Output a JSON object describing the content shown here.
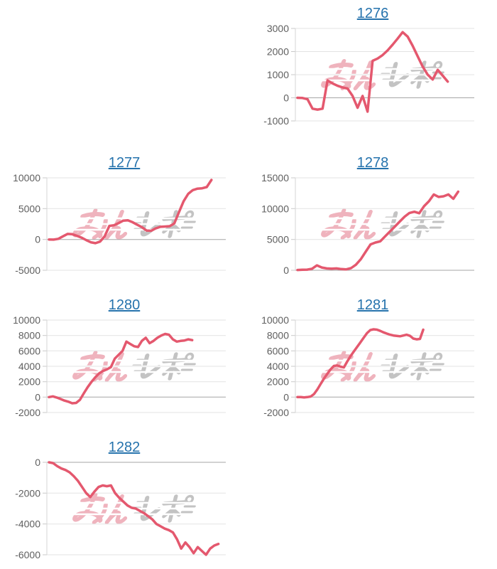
{
  "page": {
    "background": "#ffffff"
  },
  "style": {
    "line_color": "#e4586e",
    "grid_color": "#e3e3e3",
    "zero_line_color": "#a6a6a6",
    "axis_line_color": "#d6d6d6",
    "tick_color": "#c9c9c9",
    "tick_text_color": "#5f5f5f",
    "title_color": "#2673ad",
    "watermark_pink": "#eda6b2",
    "watermark_gray": "#b9b9b9"
  },
  "watermark": {
    "text": "みんレポ"
  },
  "chart_data": [
    {
      "type": "line",
      "title": "1276",
      "ylabel": "",
      "xlabel": "",
      "yticks": [
        3000,
        2000,
        1000,
        0,
        -1000
      ],
      "ylim": [
        -1000,
        3000
      ],
      "grid": true,
      "x_fraction": 0.86,
      "values": [
        0,
        -10,
        -60,
        -470,
        -510,
        -470,
        750,
        620,
        520,
        450,
        400,
        80,
        -430,
        80,
        -600,
        1600,
        1700,
        1850,
        2050,
        2300,
        2560,
        2840,
        2650,
        2250,
        1800,
        1350,
        1000,
        790,
        1210,
        960,
        700
      ]
    },
    {
      "type": "line",
      "title": "1277",
      "ylabel": "",
      "xlabel": "",
      "yticks": [
        10000,
        5000,
        0,
        -5000
      ],
      "ylim": [
        -5000,
        10000
      ],
      "grid": true,
      "x_fraction": 0.93,
      "values": [
        0,
        -30,
        100,
        500,
        900,
        850,
        600,
        300,
        -100,
        -450,
        -600,
        -350,
        500,
        2200,
        2300,
        2650,
        3050,
        3100,
        2800,
        2400,
        2000,
        1450,
        1400,
        1800,
        2050,
        2100,
        2150,
        2600,
        4400,
        6200,
        7400,
        8000,
        8250,
        8300,
        8500,
        9650
      ]
    },
    {
      "type": "line",
      "title": "1278",
      "ylabel": "",
      "xlabel": "",
      "yticks": [
        15000,
        10000,
        5000,
        0
      ],
      "ylim": [
        0,
        15000
      ],
      "grid": true,
      "x_fraction": 0.92,
      "values": [
        50,
        80,
        100,
        250,
        800,
        450,
        300,
        250,
        300,
        200,
        150,
        350,
        900,
        1800,
        3000,
        4200,
        4500,
        4700,
        5500,
        6300,
        7100,
        7900,
        8700,
        9300,
        9500,
        9250,
        10400,
        11200,
        12300,
        11900,
        12000,
        12300,
        11600,
        12750
      ]
    },
    {
      "type": "line",
      "title": "1280",
      "ylabel": "",
      "xlabel": "",
      "yticks": [
        10000,
        8000,
        6000,
        4000,
        2000,
        0,
        -2000
      ],
      "ylim": [
        -2000,
        10000
      ],
      "grid": true,
      "x_fraction": 0.82,
      "values": [
        0,
        100,
        -50,
        -250,
        -450,
        -600,
        -800,
        -750,
        -350,
        500,
        1300,
        2000,
        2600,
        3100,
        3400,
        3600,
        3900,
        5000,
        5500,
        6000,
        7200,
        6900,
        6600,
        6500,
        7300,
        7700,
        7000,
        7300,
        7700,
        8000,
        8200,
        8100,
        7500,
        7200,
        7300,
        7350,
        7500,
        7400
      ]
    },
    {
      "type": "line",
      "title": "1281",
      "ylabel": "",
      "xlabel": "",
      "yticks": [
        10000,
        8000,
        6000,
        4000,
        2000,
        0,
        -2000
      ],
      "ylim": [
        -2000,
        10000
      ],
      "grid": true,
      "x_fraction": 0.72,
      "values": [
        0,
        0,
        -30,
        0,
        80,
        400,
        1000,
        1700,
        2400,
        3000,
        3600,
        4050,
        4100,
        3950,
        3850,
        4600,
        5300,
        5900,
        6500,
        7100,
        7700,
        8300,
        8700,
        8800,
        8750,
        8600,
        8400,
        8250,
        8100,
        8000,
        7950,
        7900,
        8000,
        8100,
        7950,
        7600,
        7500,
        7550,
        8750
      ]
    },
    {
      "type": "line",
      "title": "1282",
      "ylabel": "",
      "xlabel": "",
      "yticks": [
        0,
        -2000,
        -4000,
        -6000
      ],
      "ylim": [
        -6000,
        0
      ],
      "grid": true,
      "x_fraction": 0.97,
      "values": [
        0,
        -50,
        -250,
        -400,
        -500,
        -650,
        -900,
        -1200,
        -1600,
        -2000,
        -2250,
        -1900,
        -1600,
        -1500,
        -1550,
        -1500,
        -2000,
        -2300,
        -2550,
        -2800,
        -2950,
        -3000,
        -3150,
        -3300,
        -3500,
        -3700,
        -4000,
        -4150,
        -4300,
        -4400,
        -4550,
        -5000,
        -5600,
        -5200,
        -5500,
        -5900,
        -5500,
        -5750,
        -6000,
        -5600,
        -5400,
        -5300
      ]
    }
  ]
}
